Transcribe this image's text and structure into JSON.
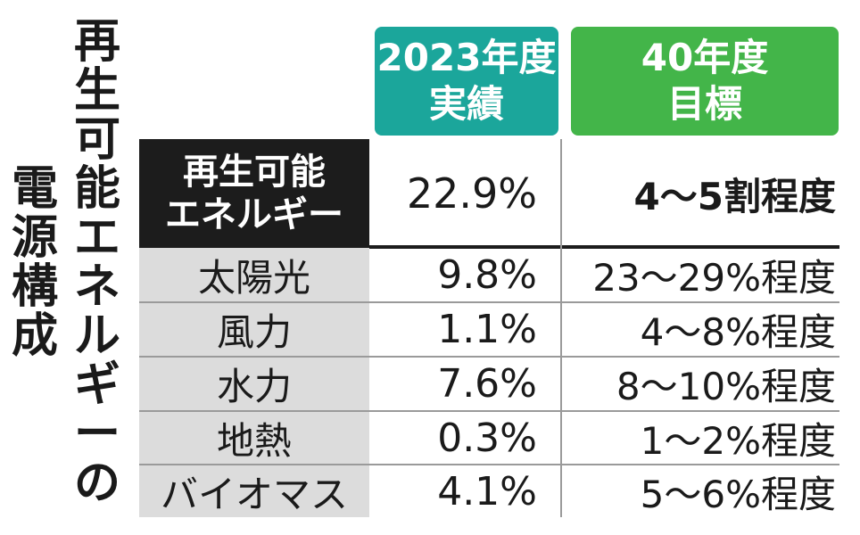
{
  "chart_data": {
    "type": "table",
    "title": "再生可能エネルギーの電源構成",
    "columns": [
      {
        "label_line1": "2023年度",
        "label_line2": "実績",
        "color": "#1ba69b"
      },
      {
        "label_line1": "40年度",
        "label_line2": "目標",
        "color": "#43b549"
      }
    ],
    "main_row": {
      "label_line1": "再生可能",
      "label_line2": "エネルギー",
      "actual_2023": "22.9%",
      "target_2040": "4～5割程度"
    },
    "rows": [
      {
        "category": "太陽光",
        "actual_2023": "9.8%",
        "target_2040": "23～29%程度"
      },
      {
        "category": "風力",
        "actual_2023": "1.1%",
        "target_2040": "4～8%程度"
      },
      {
        "category": "水力",
        "actual_2023": "7.6%",
        "target_2040": "8～10%程度"
      },
      {
        "category": "地熱",
        "actual_2023": "0.3%",
        "target_2040": "1～2%程度"
      },
      {
        "category": "バイオマス",
        "actual_2023": "4.1%",
        "target_2040": "5～6%程度"
      }
    ],
    "values_2023_percent": [
      9.8,
      1.1,
      7.6,
      0.3,
      4.1
    ],
    "total_2023_percent": 22.9
  },
  "title_columns": {
    "right": [
      "再",
      "生",
      "可",
      "能",
      "エ",
      "ネ",
      "ル",
      "ギ",
      "ー",
      "の"
    ],
    "left": [
      "電",
      "源",
      "構",
      "成"
    ]
  }
}
